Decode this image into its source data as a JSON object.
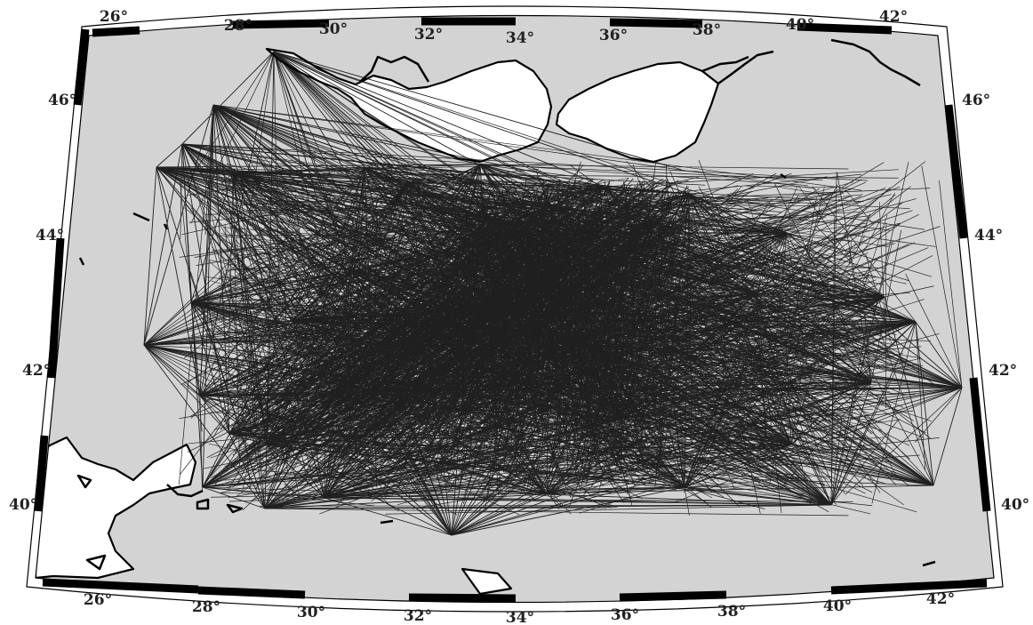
{
  "map": {
    "projection": "conic",
    "land_color": "#ffffff",
    "sea_color": "#d3d3d3",
    "ray_color": "#000000",
    "frame_colors": [
      "#000000",
      "#ffffff"
    ],
    "lon_labels_top": [
      "26°",
      "28°",
      "30°",
      "32°",
      "34°",
      "36°",
      "38°",
      "40°",
      "42°"
    ],
    "lon_labels_bottom": [
      "26°",
      "28°",
      "30°",
      "32°",
      "34°",
      "36°",
      "38°",
      "40°",
      "42°"
    ],
    "lat_labels_left": [
      "46°",
      "44°",
      "42°",
      "40°"
    ],
    "lat_labels_right": [
      "46°",
      "44°",
      "42°",
      "40°"
    ],
    "ray_density": "dense",
    "station_count_visible": "many"
  }
}
